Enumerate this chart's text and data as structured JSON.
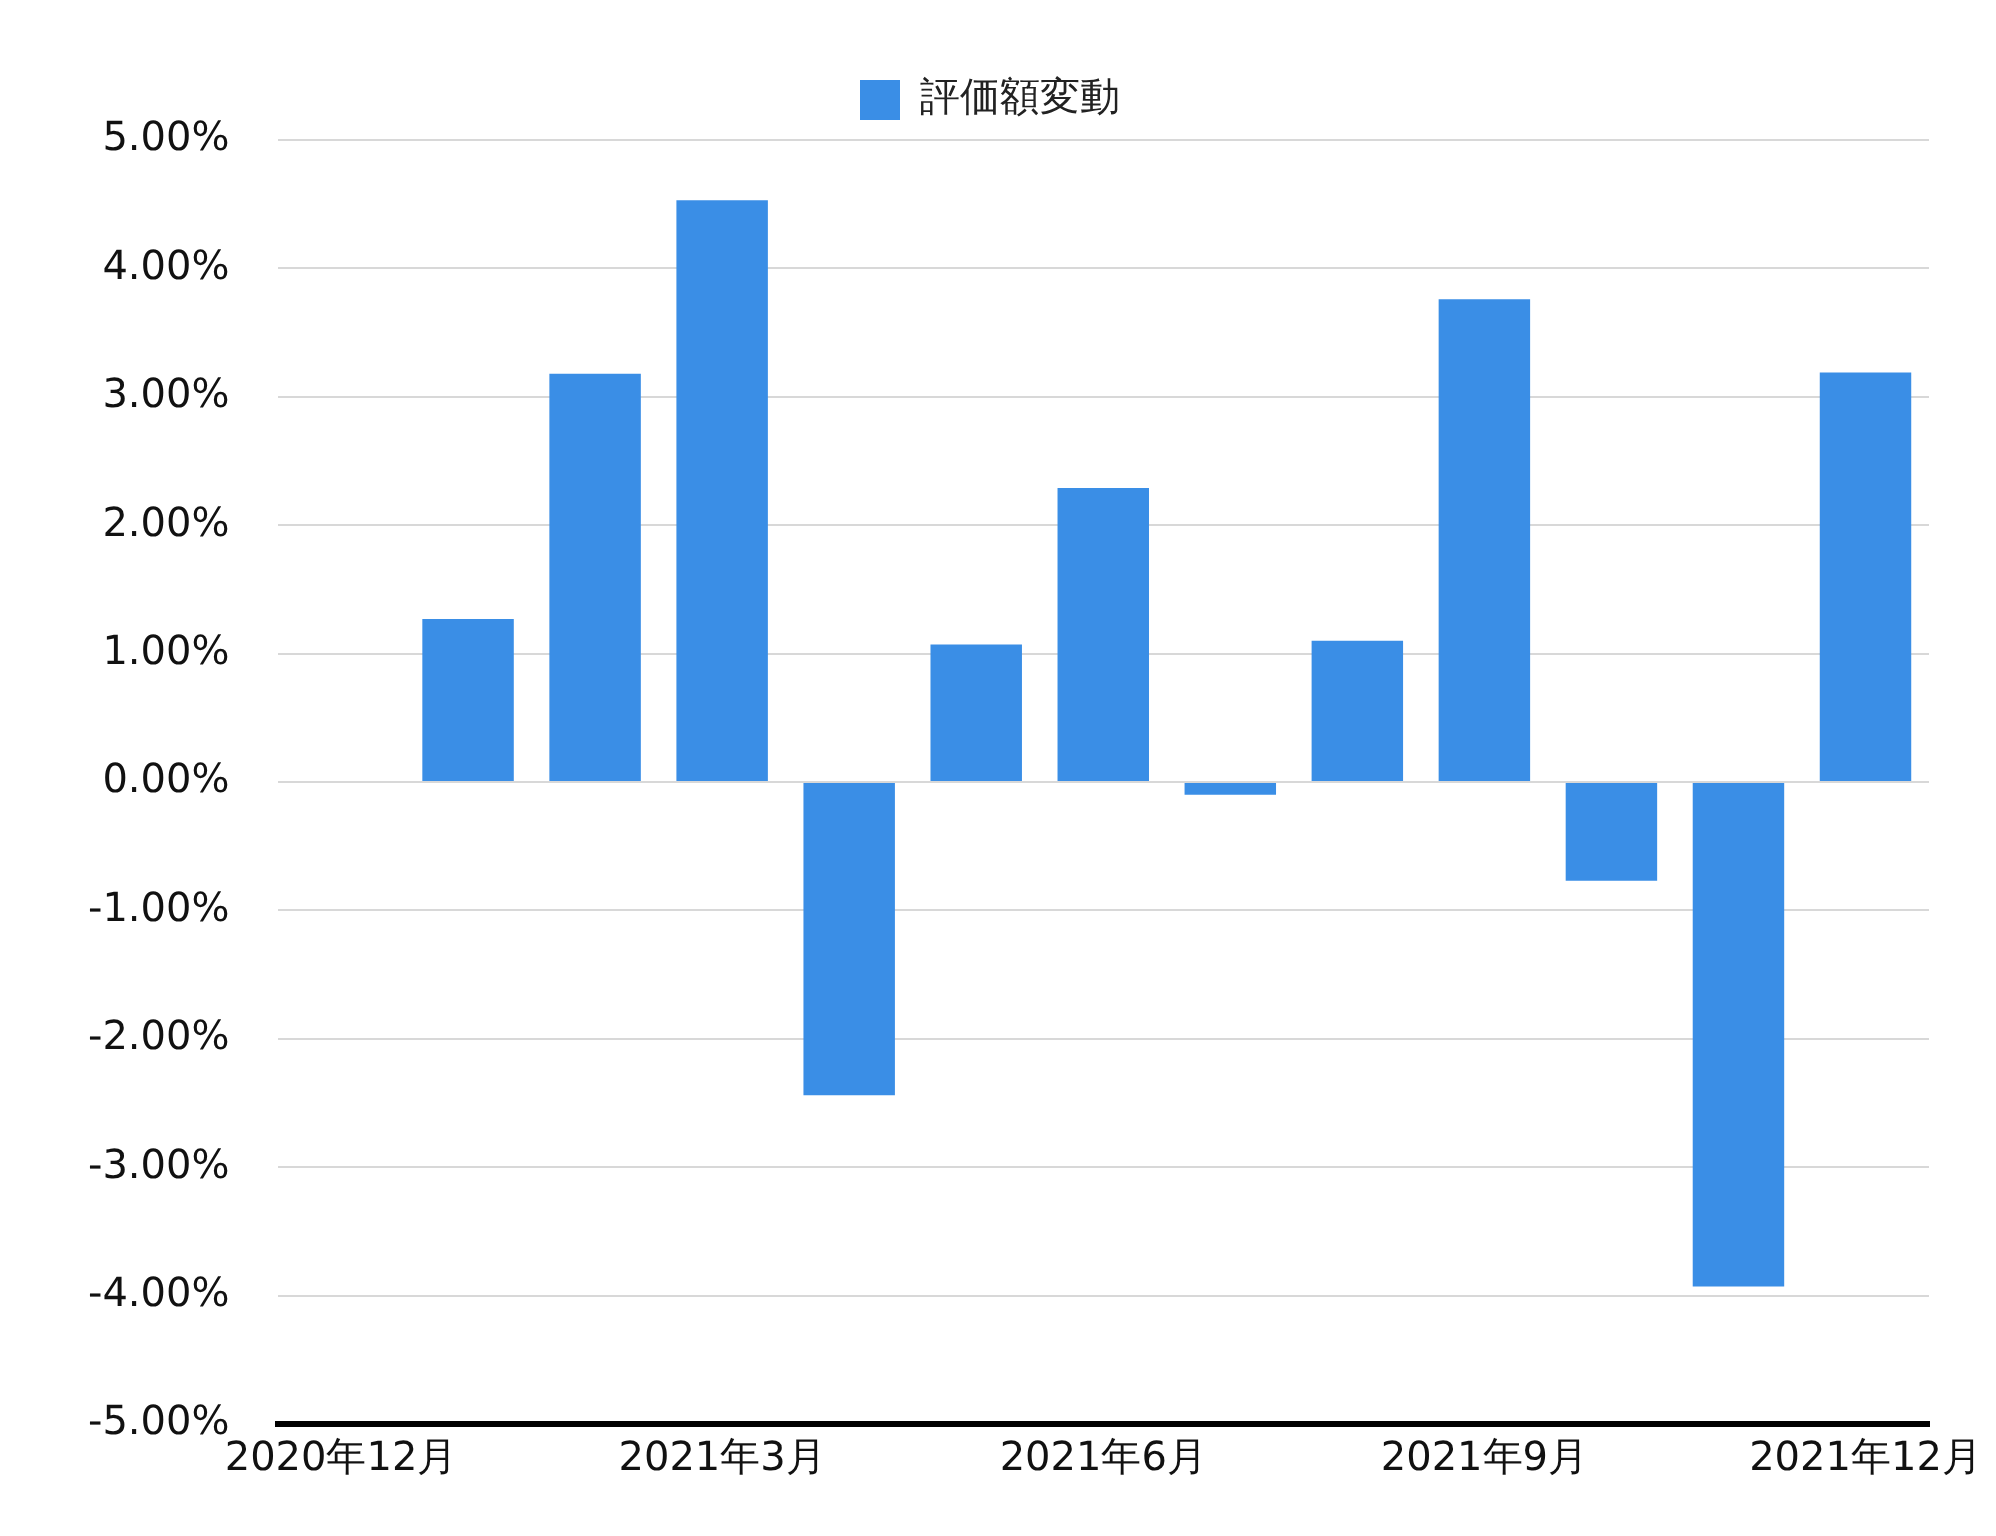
{
  "chart_data": {
    "type": "bar",
    "categories": [
      "2020年12月",
      null,
      null,
      "2021年3月",
      null,
      null,
      "2021年6月",
      null,
      null,
      "2021年9月",
      null,
      null,
      "2021年12月"
    ],
    "series": [
      {
        "name": "評価額変動",
        "color": "#3a8ee6",
        "values": [
          null,
          1.27,
          3.18,
          4.53,
          -2.44,
          1.07,
          2.29,
          -0.1,
          1.1,
          3.76,
          -0.77,
          -3.93,
          3.19
        ]
      }
    ],
    "ylim": [
      -5,
      5
    ],
    "yticks": [
      {
        "value": -5,
        "label": "-5.00%"
      },
      {
        "value": -4,
        "label": "-4.00%"
      },
      {
        "value": -3,
        "label": "-3.00%"
      },
      {
        "value": -2,
        "label": "-2.00%"
      },
      {
        "value": -1,
        "label": "-1.00%"
      },
      {
        "value": 0,
        "label": "0.00%"
      },
      {
        "value": 1,
        "label": "1.00%"
      },
      {
        "value": 2,
        "label": "2.00%"
      },
      {
        "value": 3,
        "label": "3.00%"
      },
      {
        "value": 4,
        "label": "4.00%"
      },
      {
        "value": 5,
        "label": "5.00%"
      }
    ],
    "grid": "y",
    "legend": "top"
  }
}
